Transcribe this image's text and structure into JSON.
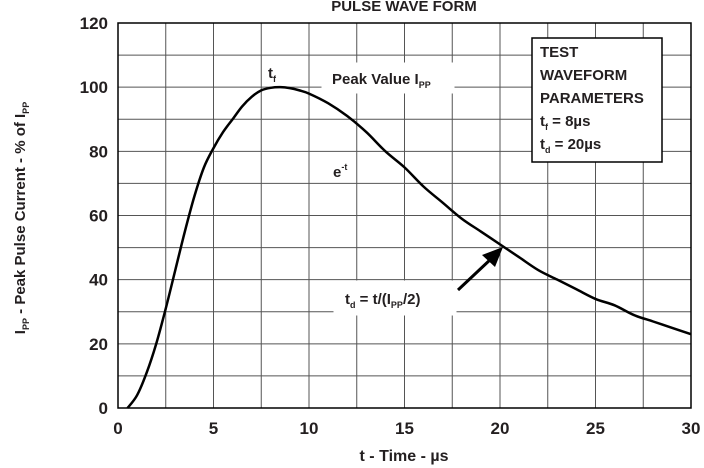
{
  "chart_data": {
    "type": "line",
    "title": "PULSE WAVE FORM",
    "xlabel": "t - Time - µs",
    "ylabel": {
      "main": "I",
      "sub": "PP",
      "mid": " - Peak Pulse Current - % of I",
      "sub2": "PP"
    },
    "xlim": [
      0,
      30
    ],
    "ylim": [
      0,
      120
    ],
    "x_ticks": [
      "0",
      "5",
      "10",
      "15",
      "20",
      "25",
      "30"
    ],
    "y_ticks": [
      "0",
      "20",
      "40",
      "60",
      "80",
      "100",
      "120"
    ],
    "grid": true,
    "series": [
      {
        "x": [
          0.5,
          1,
          1.5,
          2,
          2.5,
          3,
          3.5,
          4,
          4.5,
          5,
          5.5,
          6,
          6.5,
          7,
          7.5,
          8,
          8.5,
          9,
          9.5,
          10,
          11,
          12,
          13,
          14,
          15,
          16,
          17,
          18,
          19,
          20,
          21,
          22,
          23,
          24,
          25,
          26,
          27,
          28,
          29,
          30
        ],
        "y": [
          0,
          4,
          11,
          20,
          31,
          43,
          55,
          66,
          75,
          81,
          86,
          90,
          94,
          97,
          99,
          99.8,
          100,
          99.7,
          99,
          98,
          95,
          91,
          86,
          80,
          75,
          69,
          64,
          59,
          55,
          51,
          47,
          43,
          40,
          37,
          34,
          32,
          29,
          27,
          25,
          23
        ]
      }
    ],
    "annotations": {
      "tf": {
        "main": "t",
        "sub": "f"
      },
      "peak": {
        "main": "Peak Value I",
        "sub": "PP"
      },
      "exp": {
        "main": "e",
        "sup": "-t"
      },
      "td_formula": {
        "p1": "t",
        "s1": "d",
        "p2": " = t/(I",
        "s2": "PP",
        "p3": "/2)"
      }
    },
    "legend_box": {
      "line1": "TEST",
      "line2": "WAVEFORM",
      "line3": "PARAMETERS",
      "tf": {
        "main": "t",
        "sub": "f",
        "rest": " = 8µs"
      },
      "td": {
        "main": "t",
        "sub": "d",
        "rest": " = 20µs"
      }
    }
  }
}
